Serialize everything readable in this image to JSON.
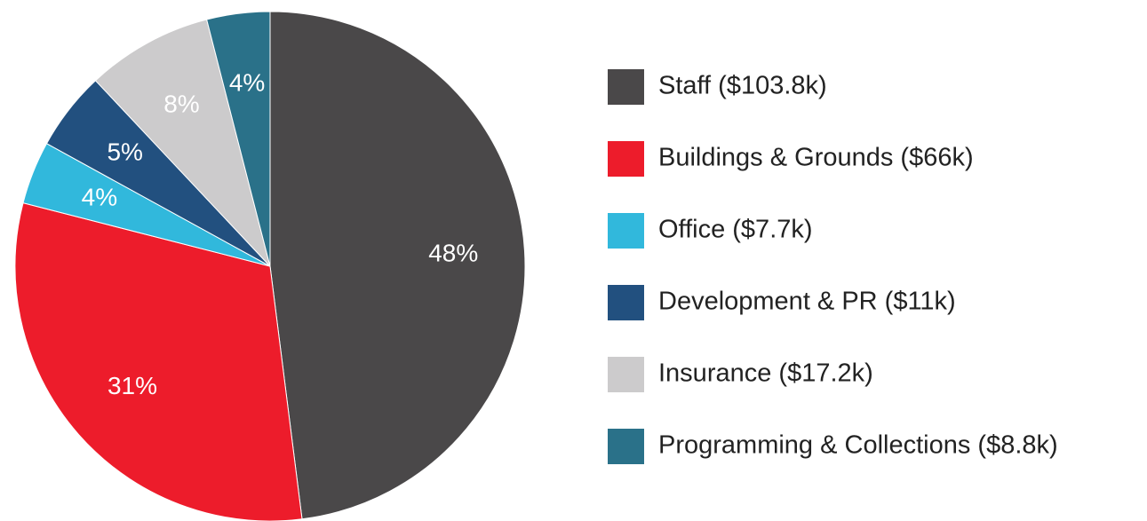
{
  "chart_data": {
    "type": "pie",
    "categories": [
      "Staff ($103.8k)",
      "Buildings & Grounds ($66k)",
      "Office ($7.7k)",
      "Development & PR ($11k)",
      "Insurance ($17.2k)",
      "Programming & Collections ($8.8k)"
    ],
    "values": [
      48,
      31,
      4,
      5,
      8,
      4
    ],
    "value_labels": [
      "48%",
      "31%",
      "4%",
      "5%",
      "8%",
      "4%"
    ],
    "colors": [
      "#4a4849",
      "#ed1c2b",
      "#31b8dc",
      "#22507f",
      "#cccbcc",
      "#2a7189"
    ]
  }
}
